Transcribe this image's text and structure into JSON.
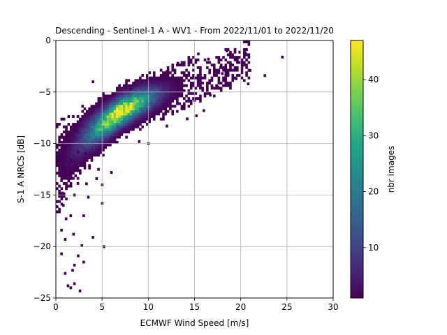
{
  "chart_data": {
    "type": "heatmap",
    "title": "Descending - Sentinel-1 A - WV1 - From 2022/11/01 to 2022/11/20",
    "xlabel": "ECMWF Wind Speed [m/s]",
    "ylabel": "S-1 A NRCS [dB]",
    "xlim": [
      0,
      30
    ],
    "ylim": [
      -25,
      0
    ],
    "xticks": [
      0,
      5,
      10,
      15,
      20,
      25,
      30
    ],
    "yticks": [
      0,
      -5,
      -10,
      -15,
      -20,
      -25
    ],
    "xtick_labels": [
      "0",
      "5",
      "10",
      "15",
      "20",
      "25",
      "30"
    ],
    "ytick_labels": [
      "0",
      "−5",
      "−10",
      "−15",
      "−20",
      "−25"
    ],
    "grid": true,
    "colormap": "viridis",
    "colorbar": {
      "label": "nbr images",
      "range": [
        1,
        47
      ],
      "ticks": [
        10,
        20,
        30,
        40
      ],
      "tick_labels": [
        "10",
        "20",
        "30",
        "40"
      ]
    },
    "bin_size": [
      0.25,
      0.25
    ],
    "density_ridge": {
      "description_points": [
        [
          1,
          -11.5
        ],
        [
          3,
          -9.5
        ],
        [
          5,
          -8.2
        ],
        [
          7,
          -6.9
        ],
        [
          9,
          -6.0
        ],
        [
          11,
          -5.3
        ],
        [
          13,
          -4.6
        ],
        [
          15,
          -4.0
        ],
        [
          17,
          -3.4
        ],
        [
          19,
          -2.6
        ]
      ],
      "peak": {
        "x": 7.0,
        "y": -7.0,
        "count": 47
      }
    },
    "outlier_points": [
      [
        24.5,
        -1.6
      ],
      [
        22.6,
        -3.4
      ],
      [
        20.5,
        -1.2
      ],
      [
        21.0,
        -2.9
      ],
      [
        20.8,
        -4.2
      ],
      [
        19.5,
        -3.7
      ],
      [
        18.0,
        -3.2
      ],
      [
        17.8,
        -2.6
      ],
      [
        16.0,
        -6.8
      ],
      [
        15.0,
        -5.8
      ],
      [
        14.2,
        -7.6
      ],
      [
        12.0,
        -8.3
      ],
      [
        10.0,
        -10.0
      ],
      [
        9.0,
        -9.8
      ],
      [
        6.0,
        -12.8
      ],
      [
        5.0,
        -14.0
      ],
      [
        5.0,
        -15.8
      ],
      [
        4.0,
        -19.1
      ],
      [
        3.5,
        -15.2
      ],
      [
        3.0,
        -17.0
      ],
      [
        2.8,
        -19.9
      ],
      [
        2.4,
        -20.9
      ],
      [
        2.0,
        -21.8
      ],
      [
        1.8,
        -22.3
      ],
      [
        2.0,
        -23.6
      ],
      [
        2.6,
        -24.3
      ],
      [
        1.6,
        -24.0
      ],
      [
        1.3,
        -23.8
      ],
      [
        1.0,
        -22.6
      ],
      [
        0.6,
        -20.7
      ],
      [
        0.6,
        -18.4
      ],
      [
        1.0,
        -19.3
      ],
      [
        1.1,
        -17.3
      ],
      [
        1.6,
        -17.0
      ],
      [
        0.8,
        -16.0
      ],
      [
        4.4,
        -13.4
      ],
      [
        3.0,
        -21.5
      ],
      [
        1.9,
        -18.8
      ],
      [
        0.5,
        -11.0
      ],
      [
        0.7,
        -9.4
      ],
      [
        0.6,
        -13.6
      ],
      [
        1.6,
        -11.6
      ],
      [
        0.9,
        -12.3
      ],
      [
        5.2,
        -20.0
      ],
      [
        4.6,
        -12.5
      ],
      [
        4.0,
        -4.0
      ],
      [
        8.1,
        -4.7
      ],
      [
        10.0,
        -3.8
      ],
      [
        12.0,
        -3.0
      ],
      [
        13.2,
        -2.2
      ],
      [
        15.4,
        -1.3
      ],
      [
        16.5,
        -1.8
      ],
      [
        18.5,
        -1.0
      ],
      [
        19.5,
        -1.7
      ],
      [
        17.5,
        -4.5
      ],
      [
        16.7,
        -5.3
      ],
      [
        15.2,
        -7.3
      ],
      [
        2.4,
        -10.8
      ],
      [
        3.3,
        -13.9
      ],
      [
        2.0,
        -15.0
      ],
      [
        0.7,
        -14.8
      ],
      [
        1.5,
        -13.4
      ],
      [
        3.2,
        -11.0
      ],
      [
        2.0,
        -8.7
      ],
      [
        1.2,
        -10.0
      ]
    ]
  }
}
